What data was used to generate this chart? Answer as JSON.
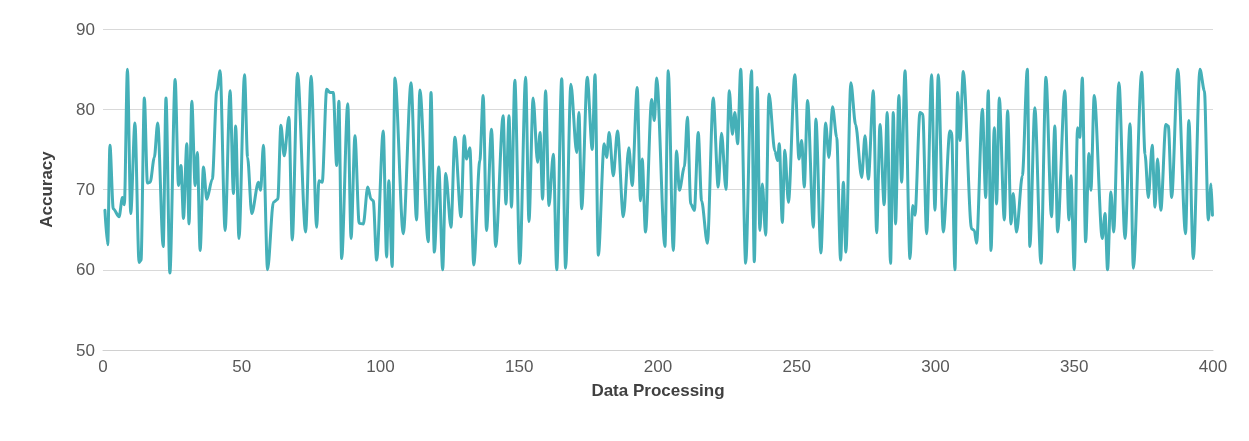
{
  "chart_data": {
    "type": "line",
    "xlabel": "Data Processing",
    "ylabel": "Accuracy",
    "xlim": [
      0,
      400
    ],
    "ylim": [
      50,
      90
    ],
    "xticks": [
      0,
      50,
      100,
      150,
      200,
      250,
      300,
      350,
      400
    ],
    "yticks": [
      50,
      60,
      70,
      80,
      90
    ],
    "grid": "y",
    "marker": "none",
    "line_style": "solid",
    "series": [
      {
        "color": "#45b0b8",
        "x": [
          0.7,
          1.7,
          2.5,
          3.7,
          5.8,
          7,
          7.7,
          8.8,
          10,
          11.5,
          13,
          13.7,
          14.9,
          16,
          17,
          18.5,
          19.7,
          21.7,
          22.7,
          24.1,
          26,
          27.2,
          28.1,
          29,
          30.2,
          31,
          32,
          33.2,
          34,
          35,
          36.2,
          37.4,
          39.4,
          41,
          42.2,
          44,
          45.8,
          47,
          47.8,
          49,
          51,
          52.1,
          53.6,
          56,
          56.8,
          57.8,
          59.3,
          61.4,
          63,
          64.1,
          65.3,
          67,
          68.2,
          70.1,
          73,
          75,
          77,
          77.8,
          79,
          80.6,
          81.8,
          83,
          84.2,
          85,
          86,
          88.2,
          89.4,
          90.8,
          92.3,
          93.8,
          95.4,
          96.6,
          97.4,
          98.6,
          101,
          102.2,
          103,
          104.2,
          105.2,
          108.2,
          111,
          113,
          114.2,
          117.2,
          118.2,
          119.4,
          121,
          122.4,
          123.5,
          125.4,
          126.8,
          129,
          130.2,
          131,
          132.2,
          133.6,
          135.8,
          137,
          138.2,
          140,
          141.5,
          144.2,
          145.2,
          146.3,
          147.2,
          148.4,
          150.2,
          152.3,
          153.5,
          155,
          156.6,
          157.5,
          158.4,
          159.5,
          160.7,
          162.3,
          163.5,
          165.3,
          166.7,
          168.6,
          170.7,
          171.5,
          172.5,
          174.5,
          176.3,
          177.3,
          178.5,
          180.6,
          181.5,
          182.4,
          183.9,
          185.4,
          187.5,
          189.5,
          190.7,
          192.5,
          193.7,
          194.3,
          195.5,
          197.7,
          198.7,
          199.5,
          202.5,
          203.7,
          205.5,
          206.7,
          207.7,
          209.5,
          210.6,
          211.8,
          213.1,
          214.5,
          215.7,
          217.8,
          219.9,
          221.7,
          222.9,
          224.5,
          225.7,
          226.8,
          227.7,
          228.7,
          229.8,
          231.6,
          233.7,
          234.7,
          235.8,
          236.7,
          237.6,
          238.8,
          240,
          242.1,
          243.1,
          243.7,
          244.8,
          245.7,
          247,
          249.3,
          250.8,
          251.8,
          252.7,
          253.9,
          256,
          256.9,
          258.7,
          260.4,
          261.6,
          262.9,
          264.4,
          265.8,
          266.8,
          267.7,
          269.5,
          271.2,
          273.4,
          274.6,
          275.8,
          277.6,
          278.8,
          280,
          281.5,
          282.6,
          283.8,
          284.8,
          285.6,
          286.8,
          287.8,
          289,
          290.8,
          291.8,
          292.6,
          294.4,
          295.4,
          296.8,
          298.6,
          299.8,
          301,
          302.8,
          305.2,
          305.8,
          307,
          308,
          308.8,
          310,
          313,
          314,
          314.8,
          316.9,
          318.1,
          319,
          320,
          321.2,
          322,
          323,
          324.8,
          326,
          327.2,
          328,
          329.2,
          331.3,
          333.1,
          334,
          335.8,
          338,
          339.8,
          341.8,
          343,
          344,
          346.6,
          348.1,
          348.8,
          350,
          351.2,
          352,
          352.9,
          354.1,
          355.3,
          356,
          357.2,
          360.1,
          361.1,
          362,
          363.2,
          364.2,
          366.1,
          368.3,
          370.1,
          371.3,
          374.3,
          375.5,
          376.7,
          378.1,
          379.1,
          380,
          381.2,
          383,
          383.9,
          385.1,
          387.3,
          390.1,
          391.3,
          392.9,
          395.3,
          396.9,
          398.3,
          399.3,
          399.8
        ],
        "values": [
          67.4,
          63.1,
          75.5,
          67.6,
          66.6,
          69,
          68.1,
          85,
          67,
          78.3,
          60.9,
          61.2,
          81.4,
          70.8,
          70.9,
          74,
          78.3,
          62.9,
          81.4,
          59.6,
          83.7,
          70.5,
          73,
          66.4,
          75.7,
          65.7,
          81,
          70.5,
          74.6,
          62.4,
          72.8,
          68.8,
          71.3,
          82.3,
          84.8,
          64.9,
          82.3,
          69.5,
          77.9,
          63.9,
          84.3,
          74,
          67,
          70.9,
          69.9,
          75.5,
          60,
          68.4,
          68.8,
          78,
          74.2,
          79,
          63.7,
          84.5,
          64.7,
          84.1,
          65.3,
          71.1,
          70.9,
          82.5,
          82.1,
          82.1,
          73,
          81,
          61.4,
          80.7,
          63.9,
          76.7,
          65.8,
          65.7,
          70.3,
          68.8,
          68.6,
          61.2,
          77.3,
          61.6,
          71.1,
          60.4,
          83.9,
          64.5,
          83.3,
          66.2,
          82.4,
          63.5,
          82.1,
          62.2,
          72.8,
          60,
          72,
          65.3,
          76.5,
          66.6,
          76.7,
          73.8,
          75.2,
          60.6,
          73.6,
          81.7,
          64.9,
          77.5,
          62.9,
          79.2,
          68.2,
          79.2,
          67.8,
          83.6,
          60.8,
          84,
          66,
          81.4,
          73.4,
          77.1,
          68.8,
          82.3,
          68,
          74.4,
          60,
          83.8,
          60.2,
          83.1,
          74.6,
          79.6,
          67.6,
          84,
          75,
          84.3,
          61.8,
          75.7,
          74,
          77.1,
          71.7,
          77.3,
          66.6,
          75.2,
          70.5,
          82.7,
          68.6,
          73.8,
          64.7,
          81.2,
          78.6,
          83.9,
          62.9,
          84.8,
          62.4,
          74.8,
          69.9,
          72.8,
          79,
          68.2,
          67.4,
          77.1,
          68.6,
          63.3,
          81.4,
          70.3,
          77,
          70,
          82.3,
          76.9,
          79.6,
          75.7,
          85,
          60.8,
          84.8,
          61,
          82.7,
          64.9,
          70.7,
          64.3,
          81.9,
          74.8,
          73.6,
          75.7,
          65.9,
          74.9,
          68.4,
          84.3,
          73.8,
          76.1,
          70.3,
          81.1,
          65.3,
          78.8,
          62.1,
          78.3,
          74,
          80.3,
          76.5,
          61.2,
          70.9,
          62.2,
          83.3,
          78.1,
          71.5,
          76.7,
          71.3,
          82.3,
          64.6,
          78.1,
          68.1,
          79.6,
          60.8,
          79.6,
          65.7,
          81.7,
          70.9,
          84.8,
          61.4,
          68,
          66.8,
          79.6,
          79.4,
          64.5,
          84.3,
          67.4,
          84.3,
          64.7,
          77.3,
          77.1,
          60,
          82.1,
          76.1,
          84.7,
          65.1,
          64.9,
          63.3,
          80,
          69,
          82.3,
          62.4,
          77.7,
          68.2,
          81.4,
          66.2,
          79.8,
          65.7,
          69.5,
          64.7,
          71.7,
          85,
          62.9,
          80.2,
          60.8,
          84,
          66.6,
          77.9,
          64.7,
          82.3,
          66.2,
          71.7,
          60,
          77.7,
          76.5,
          83.9,
          63.5,
          74.5,
          69.9,
          81.7,
          63.9,
          67,
          60,
          69.7,
          64.7,
          83.3,
          63.9,
          78.2,
          60.2,
          84.6,
          74.4,
          69,
          75.5,
          67.8,
          73.8,
          67.4,
          78.1,
          77.9,
          69,
          85,
          64.5,
          78.6,
          61.4,
          85,
          82.3,
          66.2,
          70.7,
          66.8
        ]
      }
    ]
  }
}
